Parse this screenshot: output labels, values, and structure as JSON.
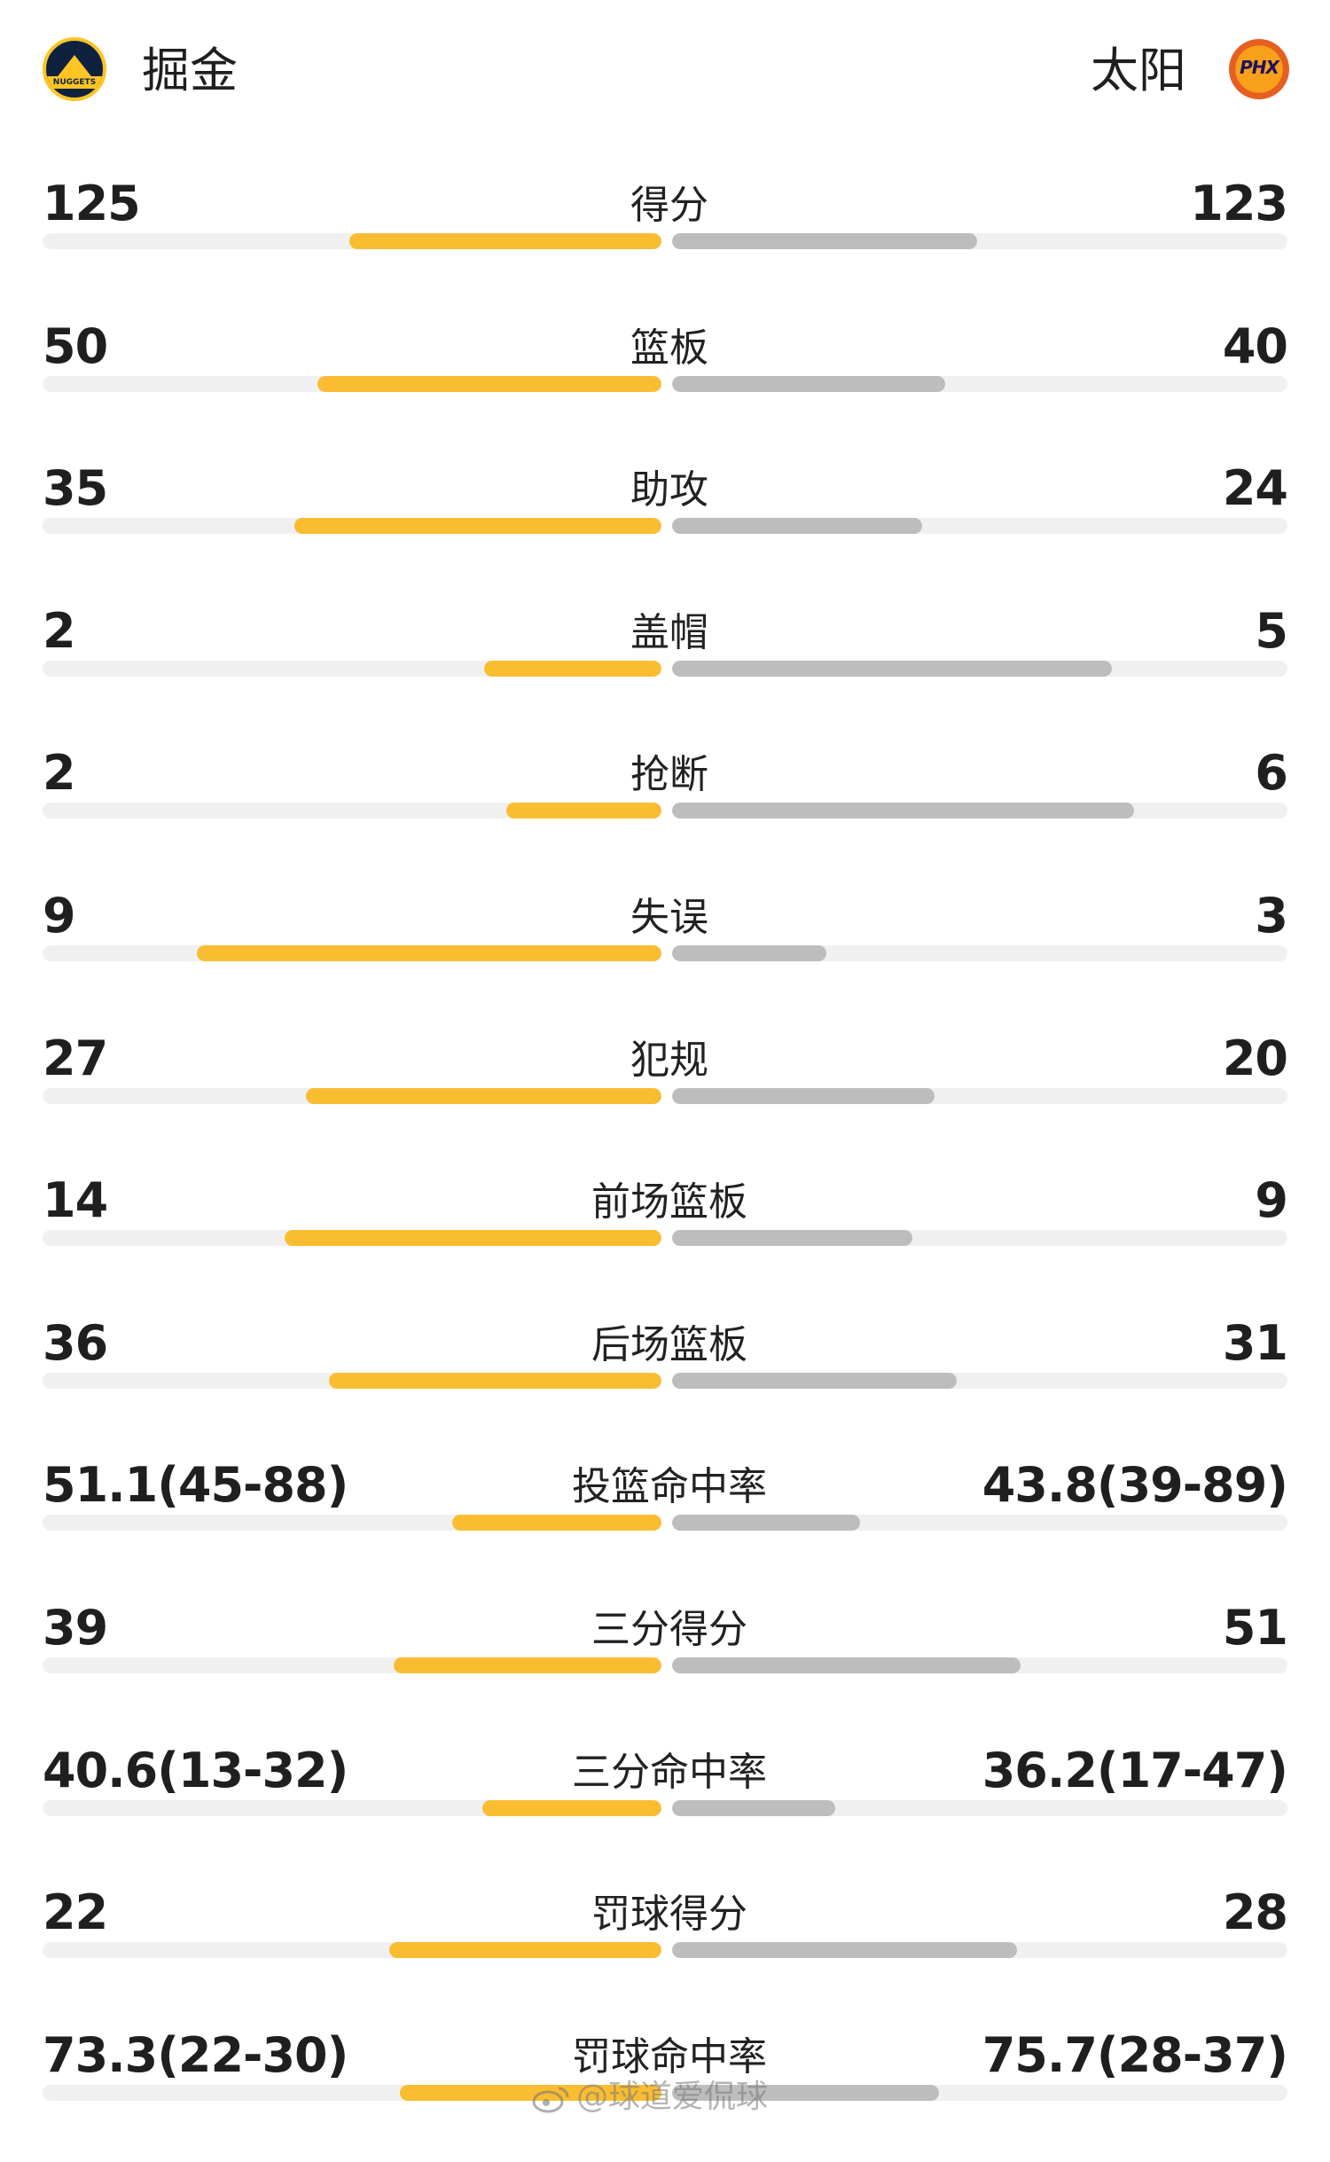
{
  "header": {
    "home_team": "掘金",
    "away_team": "太阳",
    "home_logo_text": "NUGGETS",
    "away_logo_text": "PHX",
    "home_color": "#fabd32",
    "away_color": "#bdbdbd"
  },
  "stats": [
    {
      "label": "得分",
      "home": "125",
      "away": "123",
      "home_share": 0.504,
      "away_share": 0.496
    },
    {
      "label": "篮板",
      "home": "50",
      "away": "40",
      "home_share": 0.556,
      "away_share": 0.444
    },
    {
      "label": "助攻",
      "home": "35",
      "away": "24",
      "home_share": 0.593,
      "away_share": 0.407
    },
    {
      "label": "盖帽",
      "home": "2",
      "away": "5",
      "home_share": 0.286,
      "away_share": 0.714
    },
    {
      "label": "抢断",
      "home": "2",
      "away": "6",
      "home_share": 0.25,
      "away_share": 0.75
    },
    {
      "label": "失误",
      "home": "9",
      "away": "3",
      "home_share": 0.75,
      "away_share": 0.25
    },
    {
      "label": "犯规",
      "home": "27",
      "away": "20",
      "home_share": 0.574,
      "away_share": 0.426
    },
    {
      "label": "前场篮板",
      "home": "14",
      "away": "9",
      "home_share": 0.609,
      "away_share": 0.391
    },
    {
      "label": "后场篮板",
      "home": "36",
      "away": "31",
      "home_share": 0.537,
      "away_share": 0.463
    },
    {
      "label": "投篮命中率",
      "home": "51.1(45-88)",
      "away": "43.8(39-89)",
      "home_share": 0.338,
      "away_share": 0.305
    },
    {
      "label": "三分得分",
      "home": "39",
      "away": "51",
      "home_share": 0.433,
      "away_share": 0.567
    },
    {
      "label": "三分命中率",
      "home": "40.6(13-32)",
      "away": "36.2(17-47)",
      "home_share": 0.289,
      "away_share": 0.265
    },
    {
      "label": "罚球得分",
      "home": "22",
      "away": "28",
      "home_share": 0.44,
      "away_share": 0.56
    },
    {
      "label": "罚球命中率",
      "home": "73.3(22-30)",
      "away": "75.7(28-37)",
      "home_share": 0.423,
      "away_share": 0.433
    }
  ],
  "watermark": "@球道爱侃球"
}
